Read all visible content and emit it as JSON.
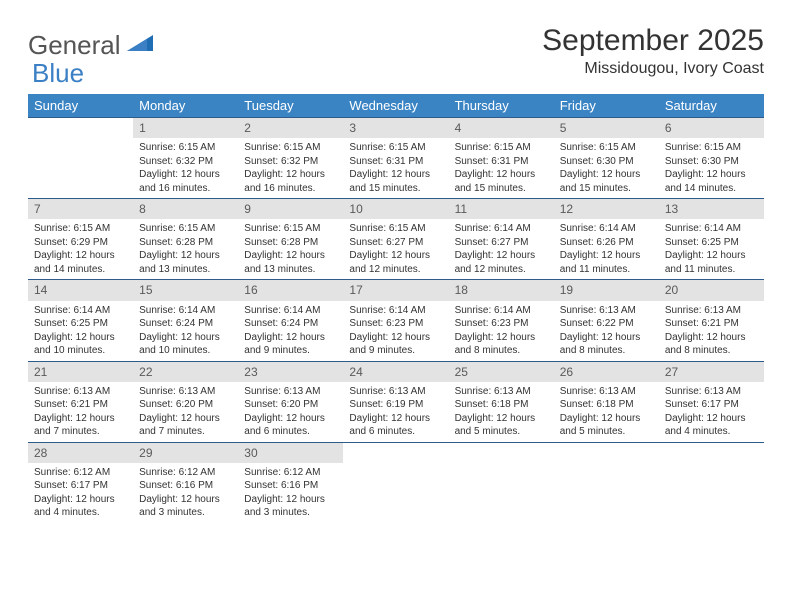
{
  "logo": {
    "part1": "General",
    "part2": "Blue"
  },
  "header": {
    "month_title": "September 2025",
    "location": "Missidougou, Ivory Coast"
  },
  "day_headers": [
    "Sunday",
    "Monday",
    "Tuesday",
    "Wednesday",
    "Thursday",
    "Friday",
    "Saturday"
  ],
  "colors": {
    "header_bg": "#3b84c4",
    "header_text": "#ffffff",
    "cell_border": "#2f5b8c",
    "daynum_bg": "#e3e3e3",
    "daynum_text": "#5a5a5a",
    "page_bg": "#ffffff",
    "text": "#333333",
    "logo_gray": "#555555",
    "logo_blue": "#3b7fc4"
  },
  "weeks": [
    [
      null,
      {
        "n": "1",
        "sr": "Sunrise: 6:15 AM",
        "ss": "Sunset: 6:32 PM",
        "d1": "Daylight: 12 hours",
        "d2": "and 16 minutes."
      },
      {
        "n": "2",
        "sr": "Sunrise: 6:15 AM",
        "ss": "Sunset: 6:32 PM",
        "d1": "Daylight: 12 hours",
        "d2": "and 16 minutes."
      },
      {
        "n": "3",
        "sr": "Sunrise: 6:15 AM",
        "ss": "Sunset: 6:31 PM",
        "d1": "Daylight: 12 hours",
        "d2": "and 15 minutes."
      },
      {
        "n": "4",
        "sr": "Sunrise: 6:15 AM",
        "ss": "Sunset: 6:31 PM",
        "d1": "Daylight: 12 hours",
        "d2": "and 15 minutes."
      },
      {
        "n": "5",
        "sr": "Sunrise: 6:15 AM",
        "ss": "Sunset: 6:30 PM",
        "d1": "Daylight: 12 hours",
        "d2": "and 15 minutes."
      },
      {
        "n": "6",
        "sr": "Sunrise: 6:15 AM",
        "ss": "Sunset: 6:30 PM",
        "d1": "Daylight: 12 hours",
        "d2": "and 14 minutes."
      }
    ],
    [
      {
        "n": "7",
        "sr": "Sunrise: 6:15 AM",
        "ss": "Sunset: 6:29 PM",
        "d1": "Daylight: 12 hours",
        "d2": "and 14 minutes."
      },
      {
        "n": "8",
        "sr": "Sunrise: 6:15 AM",
        "ss": "Sunset: 6:28 PM",
        "d1": "Daylight: 12 hours",
        "d2": "and 13 minutes."
      },
      {
        "n": "9",
        "sr": "Sunrise: 6:15 AM",
        "ss": "Sunset: 6:28 PM",
        "d1": "Daylight: 12 hours",
        "d2": "and 13 minutes."
      },
      {
        "n": "10",
        "sr": "Sunrise: 6:15 AM",
        "ss": "Sunset: 6:27 PM",
        "d1": "Daylight: 12 hours",
        "d2": "and 12 minutes."
      },
      {
        "n": "11",
        "sr": "Sunrise: 6:14 AM",
        "ss": "Sunset: 6:27 PM",
        "d1": "Daylight: 12 hours",
        "d2": "and 12 minutes."
      },
      {
        "n": "12",
        "sr": "Sunrise: 6:14 AM",
        "ss": "Sunset: 6:26 PM",
        "d1": "Daylight: 12 hours",
        "d2": "and 11 minutes."
      },
      {
        "n": "13",
        "sr": "Sunrise: 6:14 AM",
        "ss": "Sunset: 6:25 PM",
        "d1": "Daylight: 12 hours",
        "d2": "and 11 minutes."
      }
    ],
    [
      {
        "n": "14",
        "sr": "Sunrise: 6:14 AM",
        "ss": "Sunset: 6:25 PM",
        "d1": "Daylight: 12 hours",
        "d2": "and 10 minutes."
      },
      {
        "n": "15",
        "sr": "Sunrise: 6:14 AM",
        "ss": "Sunset: 6:24 PM",
        "d1": "Daylight: 12 hours",
        "d2": "and 10 minutes."
      },
      {
        "n": "16",
        "sr": "Sunrise: 6:14 AM",
        "ss": "Sunset: 6:24 PM",
        "d1": "Daylight: 12 hours",
        "d2": "and 9 minutes."
      },
      {
        "n": "17",
        "sr": "Sunrise: 6:14 AM",
        "ss": "Sunset: 6:23 PM",
        "d1": "Daylight: 12 hours",
        "d2": "and 9 minutes."
      },
      {
        "n": "18",
        "sr": "Sunrise: 6:14 AM",
        "ss": "Sunset: 6:23 PM",
        "d1": "Daylight: 12 hours",
        "d2": "and 8 minutes."
      },
      {
        "n": "19",
        "sr": "Sunrise: 6:13 AM",
        "ss": "Sunset: 6:22 PM",
        "d1": "Daylight: 12 hours",
        "d2": "and 8 minutes."
      },
      {
        "n": "20",
        "sr": "Sunrise: 6:13 AM",
        "ss": "Sunset: 6:21 PM",
        "d1": "Daylight: 12 hours",
        "d2": "and 8 minutes."
      }
    ],
    [
      {
        "n": "21",
        "sr": "Sunrise: 6:13 AM",
        "ss": "Sunset: 6:21 PM",
        "d1": "Daylight: 12 hours",
        "d2": "and 7 minutes."
      },
      {
        "n": "22",
        "sr": "Sunrise: 6:13 AM",
        "ss": "Sunset: 6:20 PM",
        "d1": "Daylight: 12 hours",
        "d2": "and 7 minutes."
      },
      {
        "n": "23",
        "sr": "Sunrise: 6:13 AM",
        "ss": "Sunset: 6:20 PM",
        "d1": "Daylight: 12 hours",
        "d2": "and 6 minutes."
      },
      {
        "n": "24",
        "sr": "Sunrise: 6:13 AM",
        "ss": "Sunset: 6:19 PM",
        "d1": "Daylight: 12 hours",
        "d2": "and 6 minutes."
      },
      {
        "n": "25",
        "sr": "Sunrise: 6:13 AM",
        "ss": "Sunset: 6:18 PM",
        "d1": "Daylight: 12 hours",
        "d2": "and 5 minutes."
      },
      {
        "n": "26",
        "sr": "Sunrise: 6:13 AM",
        "ss": "Sunset: 6:18 PM",
        "d1": "Daylight: 12 hours",
        "d2": "and 5 minutes."
      },
      {
        "n": "27",
        "sr": "Sunrise: 6:13 AM",
        "ss": "Sunset: 6:17 PM",
        "d1": "Daylight: 12 hours",
        "d2": "and 4 minutes."
      }
    ],
    [
      {
        "n": "28",
        "sr": "Sunrise: 6:12 AM",
        "ss": "Sunset: 6:17 PM",
        "d1": "Daylight: 12 hours",
        "d2": "and 4 minutes."
      },
      {
        "n": "29",
        "sr": "Sunrise: 6:12 AM",
        "ss": "Sunset: 6:16 PM",
        "d1": "Daylight: 12 hours",
        "d2": "and 3 minutes."
      },
      {
        "n": "30",
        "sr": "Sunrise: 6:12 AM",
        "ss": "Sunset: 6:16 PM",
        "d1": "Daylight: 12 hours",
        "d2": "and 3 minutes."
      },
      null,
      null,
      null,
      null
    ]
  ]
}
